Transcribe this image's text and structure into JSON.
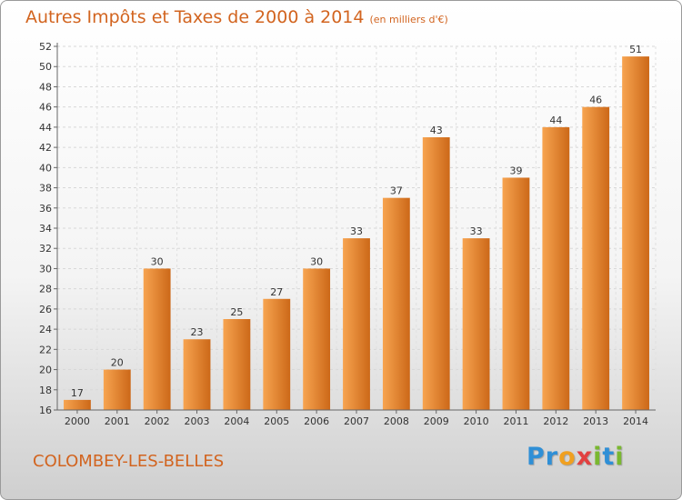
{
  "title": "Autres Impôts et Taxes de 2000 à 2014",
  "unit_note": "(en milliers d'€)",
  "commune": "COLOMBEY-LES-BELLES",
  "logo": {
    "letters": [
      {
        "ch": "P",
        "color": "#2f8fd6"
      },
      {
        "ch": "r",
        "color": "#2f8fd6"
      },
      {
        "ch": "o",
        "color": "#f0a020"
      },
      {
        "ch": "x",
        "color": "#e24040"
      },
      {
        "ch": "i",
        "color": "#7ab830"
      },
      {
        "ch": "t",
        "color": "#2f8fd6"
      },
      {
        "ch": "i",
        "color": "#7ab830"
      }
    ]
  },
  "colors": {
    "bar_light": "#f7a450",
    "bar_dark": "#cc6818",
    "text": "#d2641f"
  },
  "chart_data": {
    "type": "bar",
    "categories": [
      "2000",
      "2001",
      "2002",
      "2003",
      "2004",
      "2005",
      "2006",
      "2007",
      "2008",
      "2009",
      "2010",
      "2011",
      "2012",
      "2013",
      "2014"
    ],
    "values": [
      17,
      20,
      30,
      23,
      25,
      27,
      30,
      33,
      37,
      43,
      33,
      39,
      44,
      46,
      51
    ],
    "ylim": [
      16,
      52
    ],
    "yticks": [
      16,
      18,
      20,
      22,
      24,
      26,
      28,
      30,
      32,
      34,
      36,
      38,
      40,
      42,
      44,
      46,
      48,
      50,
      52
    ],
    "grid": true
  }
}
